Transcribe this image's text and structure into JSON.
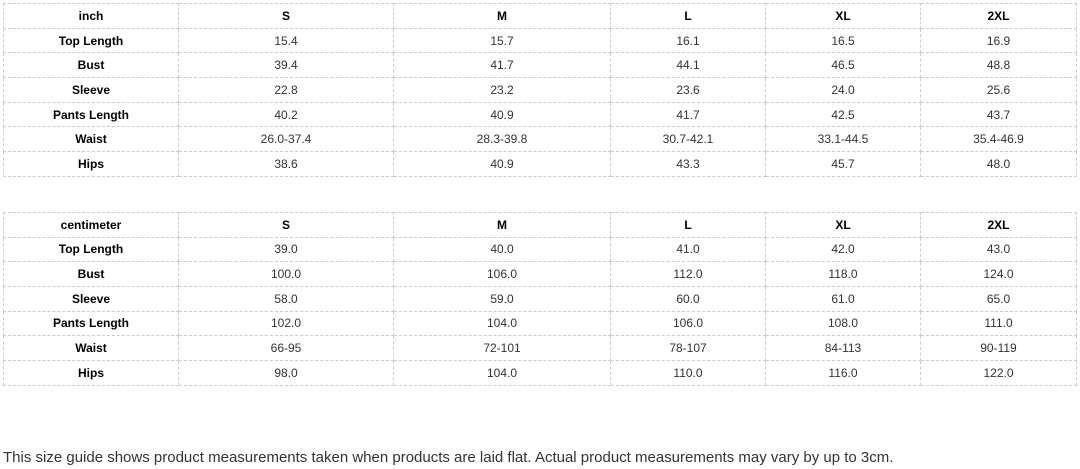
{
  "tables": [
    {
      "unit": "inch",
      "columns": [
        "S",
        "M",
        "L",
        "XL",
        "2XL"
      ],
      "rows": [
        {
          "label": "Top Length",
          "values": [
            "15.4",
            "15.7",
            "16.1",
            "16.5",
            "16.9"
          ]
        },
        {
          "label": "Bust",
          "values": [
            "39.4",
            "41.7",
            "44.1",
            "46.5",
            "48.8"
          ]
        },
        {
          "label": "Sleeve",
          "values": [
            "22.8",
            "23.2",
            "23.6",
            "24.0",
            "25.6"
          ]
        },
        {
          "label": "Pants Length",
          "values": [
            "40.2",
            "40.9",
            "41.7",
            "42.5",
            "43.7"
          ]
        },
        {
          "label": "Waist",
          "values": [
            "26.0-37.4",
            "28.3-39.8",
            "30.7-42.1",
            "33.1-44.5",
            "35.4-46.9"
          ]
        },
        {
          "label": "Hips",
          "values": [
            "38.6",
            "40.9",
            "43.3",
            "45.7",
            "48.0"
          ]
        }
      ]
    },
    {
      "unit": "centimeter",
      "columns": [
        "S",
        "M",
        "L",
        "XL",
        "2XL"
      ],
      "rows": [
        {
          "label": "Top Length",
          "values": [
            "39.0",
            "40.0",
            "41.0",
            "42.0",
            "43.0"
          ]
        },
        {
          "label": "Bust",
          "values": [
            "100.0",
            "106.0",
            "112.0",
            "118.0",
            "124.0"
          ]
        },
        {
          "label": "Sleeve",
          "values": [
            "58.0",
            "59.0",
            "60.0",
            "61.0",
            "65.0"
          ]
        },
        {
          "label": "Pants Length",
          "values": [
            "102.0",
            "104.0",
            "106.0",
            "108.0",
            "111.0"
          ]
        },
        {
          "label": "Waist",
          "values": [
            "66-95",
            "72-101",
            "78-107",
            "84-113",
            "90-119"
          ]
        },
        {
          "label": "Hips",
          "values": [
            "98.0",
            "104.0",
            "110.0",
            "116.0",
            "122.0"
          ]
        }
      ]
    }
  ],
  "footnote": "This size guide shows product measurements taken when products are laid flat. Actual product measurements may vary by up to 3cm.",
  "colors": {
    "border": "#cccccc",
    "header_text": "#000000",
    "value_text": "#333333",
    "background": "#ffffff"
  }
}
